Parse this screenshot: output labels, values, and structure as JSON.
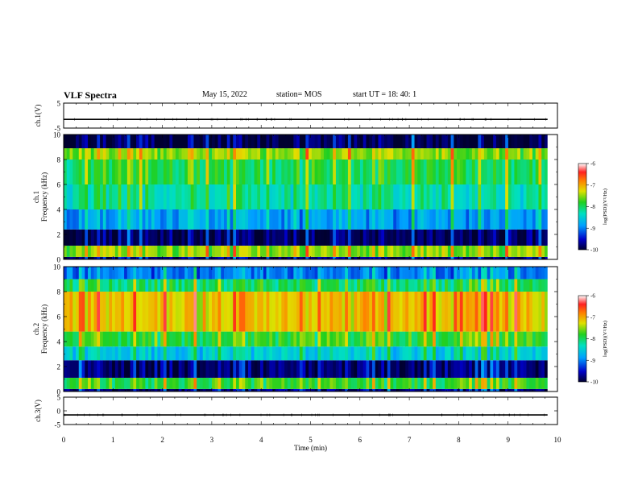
{
  "header": {
    "title": "VLF Spectra",
    "date": "May 15, 2022",
    "station": "station= MOS",
    "start": "start UT =   18: 40: 1"
  },
  "chart_data": [
    {
      "type": "line",
      "panel": "ch1-voltage",
      "ylabel": "ch.1(V)",
      "ylim": [
        -5,
        5
      ],
      "yticks": [
        "5",
        "-5"
      ],
      "series": [
        {
          "values_description_level": -1.5
        }
      ]
    },
    {
      "type": "heatmap",
      "panel": "ch1-spectrogram",
      "ylabel": "ch.1\nFrequency (kHz)",
      "ylabel_lines": [
        "ch.1",
        "Frequency (kHz)"
      ],
      "ylim": [
        0,
        10
      ],
      "yticks": [
        "0",
        "2",
        "4",
        "6",
        "8",
        "10"
      ],
      "colorbar": {
        "label": "log(PSD)(V²/Hz)",
        "range": [
          -10,
          -6
        ],
        "ticks": [
          "-6",
          "-7",
          "-8",
          "-9",
          "-10"
        ]
      },
      "bands_khz": [
        {
          "from": 0.0,
          "to": 0.2,
          "level": -9.5
        },
        {
          "from": 0.2,
          "to": 1.1,
          "level": -7.3
        },
        {
          "from": 1.1,
          "to": 2.4,
          "level": -9.6
        },
        {
          "from": 2.4,
          "to": 4.0,
          "level": -8.6
        },
        {
          "from": 4.0,
          "to": 6.0,
          "level": -8.0
        },
        {
          "from": 6.0,
          "to": 8.0,
          "level": -7.7
        },
        {
          "from": 8.0,
          "to": 8.9,
          "level": -7.3
        },
        {
          "from": 8.9,
          "to": 10.0,
          "level": -9.7
        }
      ]
    },
    {
      "type": "heatmap",
      "panel": "ch2-spectrogram",
      "ylabel": "ch.2\nFrequency (kHz)",
      "ylabel_lines": [
        "ch.2",
        "Frequency (kHz)"
      ],
      "ylim": [
        0,
        10
      ],
      "yticks": [
        "0",
        "2",
        "4",
        "6",
        "8",
        "10"
      ],
      "colorbar": {
        "label": "log(PSD)(V²/Hz)",
        "range": [
          -10,
          -6
        ],
        "ticks": [
          "-6",
          "-7",
          "-8",
          "-9",
          "-10"
        ]
      },
      "bands_khz": [
        {
          "from": 0.0,
          "to": 0.2,
          "level": -9.5
        },
        {
          "from": 0.2,
          "to": 1.1,
          "level": -7.6
        },
        {
          "from": 1.1,
          "to": 2.5,
          "level": -9.6
        },
        {
          "from": 2.5,
          "to": 3.6,
          "level": -8.3
        },
        {
          "from": 3.6,
          "to": 4.8,
          "level": -7.6
        },
        {
          "from": 4.8,
          "to": 8.0,
          "level": -6.9
        },
        {
          "from": 8.0,
          "to": 9.0,
          "level": -7.8
        },
        {
          "from": 9.0,
          "to": 10.0,
          "level": -8.8
        }
      ]
    },
    {
      "type": "line",
      "panel": "ch3-voltage",
      "ylabel": "ch.3(V)",
      "ylim": [
        -5,
        5
      ],
      "yticks": [
        "5",
        "0",
        "-5"
      ],
      "series": [
        {
          "values_description_level": -1.5
        }
      ]
    }
  ],
  "xaxis": {
    "label": "Time (min)",
    "range": [
      0,
      10
    ],
    "ticks": [
      "0",
      "1",
      "2",
      "3",
      "4",
      "5",
      "6",
      "7",
      "8",
      "9",
      "10"
    ],
    "data_end": 9.8
  }
}
